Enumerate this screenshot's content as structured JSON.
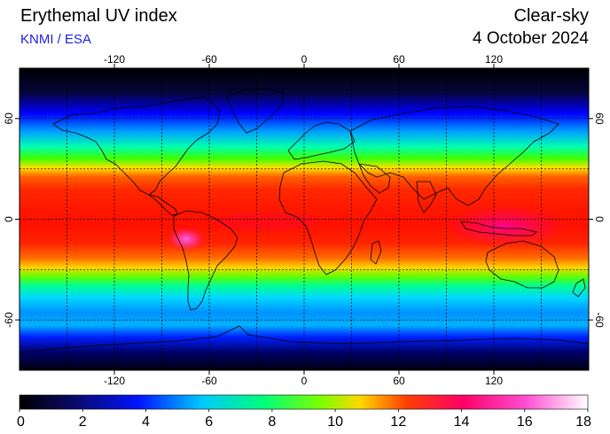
{
  "header": {
    "title": "Erythemal UV index",
    "credit": "KNMI / ESA",
    "mode": "Clear-sky",
    "date": "4 October 2024"
  },
  "map": {
    "projection": "equirectangular",
    "lon_range": [
      -180,
      180
    ],
    "lat_range": [
      -90,
      90
    ],
    "lon_ticks": [
      "-120",
      "-60",
      "0",
      "60",
      "120"
    ],
    "lon_tick_values": [
      -120,
      -60,
      0,
      60,
      120
    ],
    "lat_ticks": [
      "60",
      "0",
      "-60"
    ],
    "lat_tick_values": [
      60,
      0,
      -60
    ],
    "grid_lon_values": [
      -150,
      -120,
      -90,
      -60,
      -30,
      0,
      30,
      60,
      90,
      120,
      150
    ],
    "grid_lat_values": [
      60,
      30,
      0,
      -30,
      -60
    ],
    "grid": "dotted",
    "coastlines": true
  },
  "colorbar": {
    "min": 0,
    "max": 18,
    "labels": [
      "0",
      "2",
      "4",
      "6",
      "8",
      "10",
      "12",
      "14",
      "16",
      "18"
    ],
    "colors": [
      "#000000",
      "#0a0a6e",
      "#0014ff",
      "#00c8ff",
      "#00ff7a",
      "#7cff00",
      "#ffd700",
      "#ff4000",
      "#ff0066",
      "#ff4dd2",
      "#ffffff"
    ]
  },
  "chart_data": {
    "type": "heatmap",
    "title": "Erythemal UV index",
    "subtitle": "Clear-sky",
    "x_range": [
      -180,
      180
    ],
    "y_range": [
      -90,
      90
    ],
    "value_range": [
      0,
      18
    ],
    "zonal_uv_profile": [
      {
        "lat": 90,
        "uv": 0
      },
      {
        "lat": 75,
        "uv": 0.8
      },
      {
        "lat": 65,
        "uv": 1.5
      },
      {
        "lat": 55,
        "uv": 2.8
      },
      {
        "lat": 45,
        "uv": 4.5
      },
      {
        "lat": 35,
        "uv": 7
      },
      {
        "lat": 25,
        "uv": 10
      },
      {
        "lat": 15,
        "uv": 12
      },
      {
        "lat": 5,
        "uv": 12.5
      },
      {
        "lat": -5,
        "uv": 13
      },
      {
        "lat": -15,
        "uv": 12.5
      },
      {
        "lat": -25,
        "uv": 10
      },
      {
        "lat": -35,
        "uv": 7
      },
      {
        "lat": -45,
        "uv": 5
      },
      {
        "lat": -55,
        "uv": 4
      },
      {
        "lat": -65,
        "uv": 3
      },
      {
        "lat": -75,
        "uv": 1.5
      },
      {
        "lat": -90,
        "uv": 0
      }
    ],
    "peak_uv": 17
  }
}
